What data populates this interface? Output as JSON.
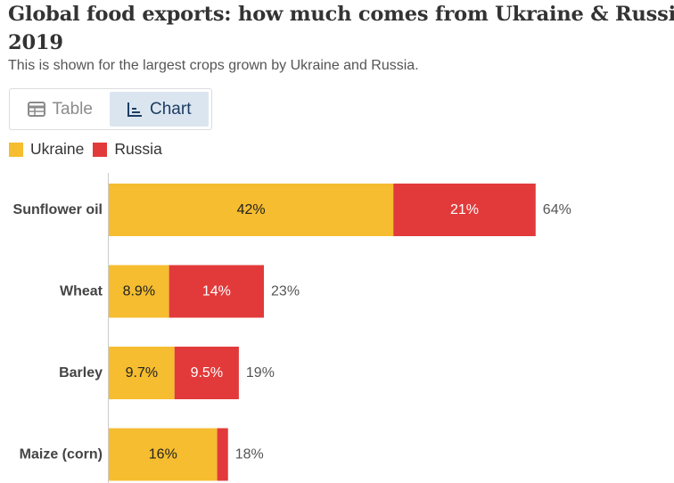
{
  "header": {
    "title_line1": "Global food exports: how much comes from Ukraine & Russia?",
    "title_line2": "2019",
    "subtitle": "This is shown for the largest crops grown by Ukraine and Russia."
  },
  "tabs": {
    "table_label": "Table",
    "table_icon": "table-icon",
    "chart_label": "Chart",
    "chart_icon": "line-chart-icon",
    "active": "Chart"
  },
  "colors": {
    "ukraine": "#f5bd2f",
    "russia": "#e23a3a",
    "axis": "#cccccc",
    "label_on_yellow": "#222222",
    "label_on_red": "#ffffff"
  },
  "chart_data": {
    "type": "bar",
    "orientation": "horizontal",
    "stacked": true,
    "categories": [
      "Sunflower oil",
      "Wheat",
      "Barley",
      "Maize (corn)"
    ],
    "series": [
      {
        "name": "Ukraine",
        "values": [
          42,
          8.9,
          9.7,
          16
        ],
        "labels": [
          "42%",
          "8.9%",
          "9.7%",
          "16%"
        ]
      },
      {
        "name": "Russia",
        "values": [
          21,
          14,
          9.5,
          1.6
        ],
        "labels": [
          "21%",
          "14%",
          "9.5%",
          ""
        ]
      }
    ],
    "totals": [
      "64%",
      "23%",
      "19%",
      "18%"
    ],
    "unit": "%",
    "legend_position": "top-left"
  }
}
